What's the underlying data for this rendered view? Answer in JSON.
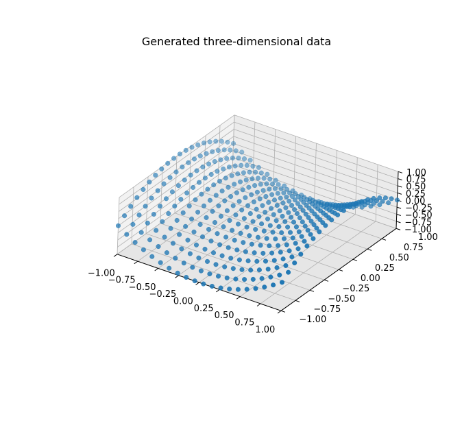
{
  "chart_data": {
    "type": "scatter",
    "title": "Generated three-dimensional data",
    "xlabel": "",
    "ylabel": "",
    "zlabel": "",
    "xlim": [
      -1.0,
      1.0
    ],
    "ylim": [
      -1.0,
      1.0
    ],
    "zlim": [
      -1.0,
      1.0
    ],
    "xticks": [
      "−1.00",
      "−0.75",
      "−0.50",
      "−0.25",
      "0.00",
      "0.25",
      "0.50",
      "0.75",
      "1.00"
    ],
    "yticks": [
      "−1.00",
      "−0.75",
      "−0.50",
      "−0.25",
      "0.00",
      "0.25",
      "0.50",
      "0.75",
      "1.00"
    ],
    "zticks": [
      "−1.00",
      "−0.75",
      "−0.50",
      "−0.25",
      "0.00",
      "0.25",
      "0.50",
      "0.75",
      "1.00"
    ],
    "marker_color": "#1f77b4",
    "surface": "z = x^2 - y^2 sampled on a 20 x 20 grid over [-1, 1] x [-1, 1]",
    "grid": true,
    "pane_color": "#f2f2f2"
  }
}
